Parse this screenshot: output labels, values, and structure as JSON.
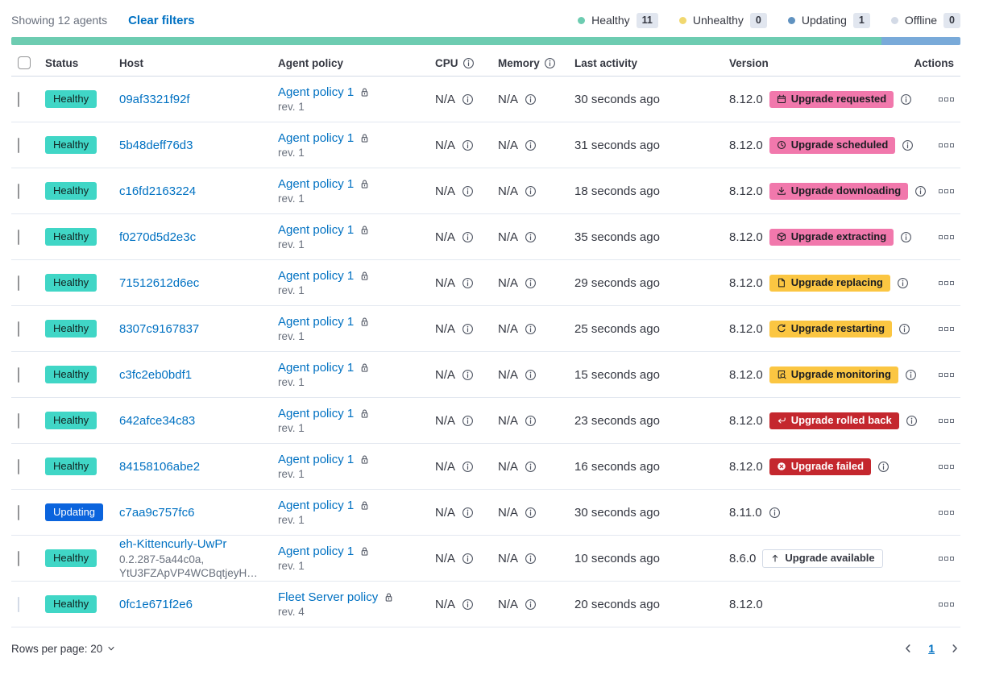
{
  "toolbar": {
    "showing": "Showing 12 agents",
    "clear_filters": "Clear filters",
    "legend": [
      {
        "label": "Healthy",
        "count": "11",
        "color": "#6dccb1"
      },
      {
        "label": "Unhealthy",
        "count": "0",
        "color": "#f1d86f"
      },
      {
        "label": "Updating",
        "count": "1",
        "color": "#6092c0"
      },
      {
        "label": "Offline",
        "count": "0",
        "color": "#d3dae6"
      }
    ]
  },
  "status_bar": {
    "segments": [
      {
        "name": "healthy",
        "color": "#6dccb1",
        "percent": 91.7
      },
      {
        "name": "updating",
        "color": "#79aad9",
        "percent": 8.3
      }
    ]
  },
  "table": {
    "headers": {
      "status": "Status",
      "host": "Host",
      "policy": "Agent policy",
      "cpu": "CPU",
      "memory": "Memory",
      "last_activity": "Last activity",
      "version": "Version",
      "actions": "Actions"
    },
    "status_styles": {
      "healthy": {
        "bg": "#40d6c6",
        "text": "#112220",
        "label": "Healthy"
      },
      "updating": {
        "bg": "#0b64dd",
        "text": "#ffffff",
        "label": "Updating"
      }
    },
    "badge_styles": {
      "accent": {
        "bg": "#f178ac",
        "text": "#1a1c21",
        "border": "none"
      },
      "warning": {
        "bg": "#fbc642",
        "text": "#1a1c21",
        "border": "none"
      },
      "danger": {
        "bg": "#c4272e",
        "text": "#ffffff",
        "border": "none"
      },
      "hollow": {
        "bg": "#ffffff",
        "text": "#343741",
        "border": "#d3dae6"
      }
    },
    "rows": [
      {
        "status": "healthy",
        "host": "09af3321f92f",
        "host_sub": null,
        "policy": "Agent policy 1",
        "policy_rev": "rev. 1",
        "policy_locked": false,
        "cpu": "N/A",
        "memory": "N/A",
        "last_activity": "30 seconds ago",
        "version": "8.12.0",
        "version_info": false,
        "upgrade_badge": {
          "label": "Upgrade requested",
          "style": "accent",
          "icon": "calendar-icon",
          "info": true
        },
        "checkbox_disabled": false
      },
      {
        "status": "healthy",
        "host": "5b48deff76d3",
        "host_sub": null,
        "policy": "Agent policy 1",
        "policy_rev": "rev. 1",
        "policy_locked": false,
        "cpu": "N/A",
        "memory": "N/A",
        "last_activity": "31 seconds ago",
        "version": "8.12.0",
        "version_info": false,
        "upgrade_badge": {
          "label": "Upgrade scheduled",
          "style": "accent",
          "icon": "clock-icon",
          "info": true
        },
        "checkbox_disabled": false
      },
      {
        "status": "healthy",
        "host": "c16fd2163224",
        "host_sub": null,
        "policy": "Agent policy 1",
        "policy_rev": "rev. 1",
        "policy_locked": false,
        "cpu": "N/A",
        "memory": "N/A",
        "last_activity": "18 seconds ago",
        "version": "8.12.0",
        "version_info": false,
        "upgrade_badge": {
          "label": "Upgrade downloading",
          "style": "accent",
          "icon": "download-icon",
          "info": true
        },
        "checkbox_disabled": false
      },
      {
        "status": "healthy",
        "host": "f0270d5d2e3c",
        "host_sub": null,
        "policy": "Agent policy 1",
        "policy_rev": "rev. 1",
        "policy_locked": false,
        "cpu": "N/A",
        "memory": "N/A",
        "last_activity": "35 seconds ago",
        "version": "8.12.0",
        "version_info": false,
        "upgrade_badge": {
          "label": "Upgrade extracting",
          "style": "accent",
          "icon": "package-icon",
          "info": true
        },
        "checkbox_disabled": false
      },
      {
        "status": "healthy",
        "host": "71512612d6ec",
        "host_sub": null,
        "policy": "Agent policy 1",
        "policy_rev": "rev. 1",
        "policy_locked": false,
        "cpu": "N/A",
        "memory": "N/A",
        "last_activity": "29 seconds ago",
        "version": "8.12.0",
        "version_info": false,
        "upgrade_badge": {
          "label": "Upgrade replacing",
          "style": "warning",
          "icon": "document-icon",
          "info": true
        },
        "checkbox_disabled": false
      },
      {
        "status": "healthy",
        "host": "8307c9167837",
        "host_sub": null,
        "policy": "Agent policy 1",
        "policy_rev": "rev. 1",
        "policy_locked": false,
        "cpu": "N/A",
        "memory": "N/A",
        "last_activity": "25 seconds ago",
        "version": "8.12.0",
        "version_info": false,
        "upgrade_badge": {
          "label": "Upgrade restarting",
          "style": "warning",
          "icon": "refresh-icon",
          "info": true
        },
        "checkbox_disabled": false
      },
      {
        "status": "healthy",
        "host": "c3fc2eb0bdf1",
        "host_sub": null,
        "policy": "Agent policy 1",
        "policy_rev": "rev. 1",
        "policy_locked": false,
        "cpu": "N/A",
        "memory": "N/A",
        "last_activity": "15 seconds ago",
        "version": "8.12.0",
        "version_info": false,
        "upgrade_badge": {
          "label": "Upgrade monitoring",
          "style": "warning",
          "icon": "inspect-icon",
          "info": true
        },
        "checkbox_disabled": false
      },
      {
        "status": "healthy",
        "host": "642afce34c83",
        "host_sub": null,
        "policy": "Agent policy 1",
        "policy_rev": "rev. 1",
        "policy_locked": false,
        "cpu": "N/A",
        "memory": "N/A",
        "last_activity": "23 seconds ago",
        "version": "8.12.0",
        "version_info": false,
        "upgrade_badge": {
          "label": "Upgrade rolled back",
          "style": "danger",
          "icon": "return-arrow-icon",
          "info": true
        },
        "checkbox_disabled": false
      },
      {
        "status": "healthy",
        "host": "84158106abe2",
        "host_sub": null,
        "policy": "Agent policy 1",
        "policy_rev": "rev. 1",
        "policy_locked": false,
        "cpu": "N/A",
        "memory": "N/A",
        "last_activity": "16 seconds ago",
        "version": "8.12.0",
        "version_info": false,
        "upgrade_badge": {
          "label": "Upgrade failed",
          "style": "danger",
          "icon": "error-icon",
          "info": true
        },
        "checkbox_disabled": false
      },
      {
        "status": "updating",
        "host": "c7aa9c757fc6",
        "host_sub": null,
        "policy": "Agent policy 1",
        "policy_rev": "rev. 1",
        "policy_locked": false,
        "cpu": "N/A",
        "memory": "N/A",
        "last_activity": "30 seconds ago",
        "version": "8.11.0",
        "version_info": true,
        "upgrade_badge": null,
        "checkbox_disabled": false
      },
      {
        "status": "healthy",
        "host": "eh-Kittencurly-UwPr",
        "host_sub": "0.2.287-5a44c0a,\nYtU3FZApVP4WCBqtjeyH…",
        "policy": "Agent policy 1",
        "policy_rev": "rev. 1",
        "policy_locked": false,
        "cpu": "N/A",
        "memory": "N/A",
        "last_activity": "10 seconds ago",
        "version": "8.6.0",
        "version_info": false,
        "upgrade_badge": {
          "label": "Upgrade available",
          "style": "hollow",
          "icon": "arrow-up-icon",
          "info": false
        },
        "checkbox_disabled": false
      },
      {
        "status": "healthy",
        "host": "0fc1e671f2e6",
        "host_sub": null,
        "policy": "Fleet Server policy",
        "policy_rev": "rev. 4",
        "policy_locked": true,
        "cpu": "N/A",
        "memory": "N/A",
        "last_activity": "20 seconds ago",
        "version": "8.12.0",
        "version_info": false,
        "upgrade_badge": null,
        "checkbox_disabled": true
      }
    ]
  },
  "footer": {
    "rows_per_page_label": "Rows per page: 20",
    "page": "1"
  }
}
